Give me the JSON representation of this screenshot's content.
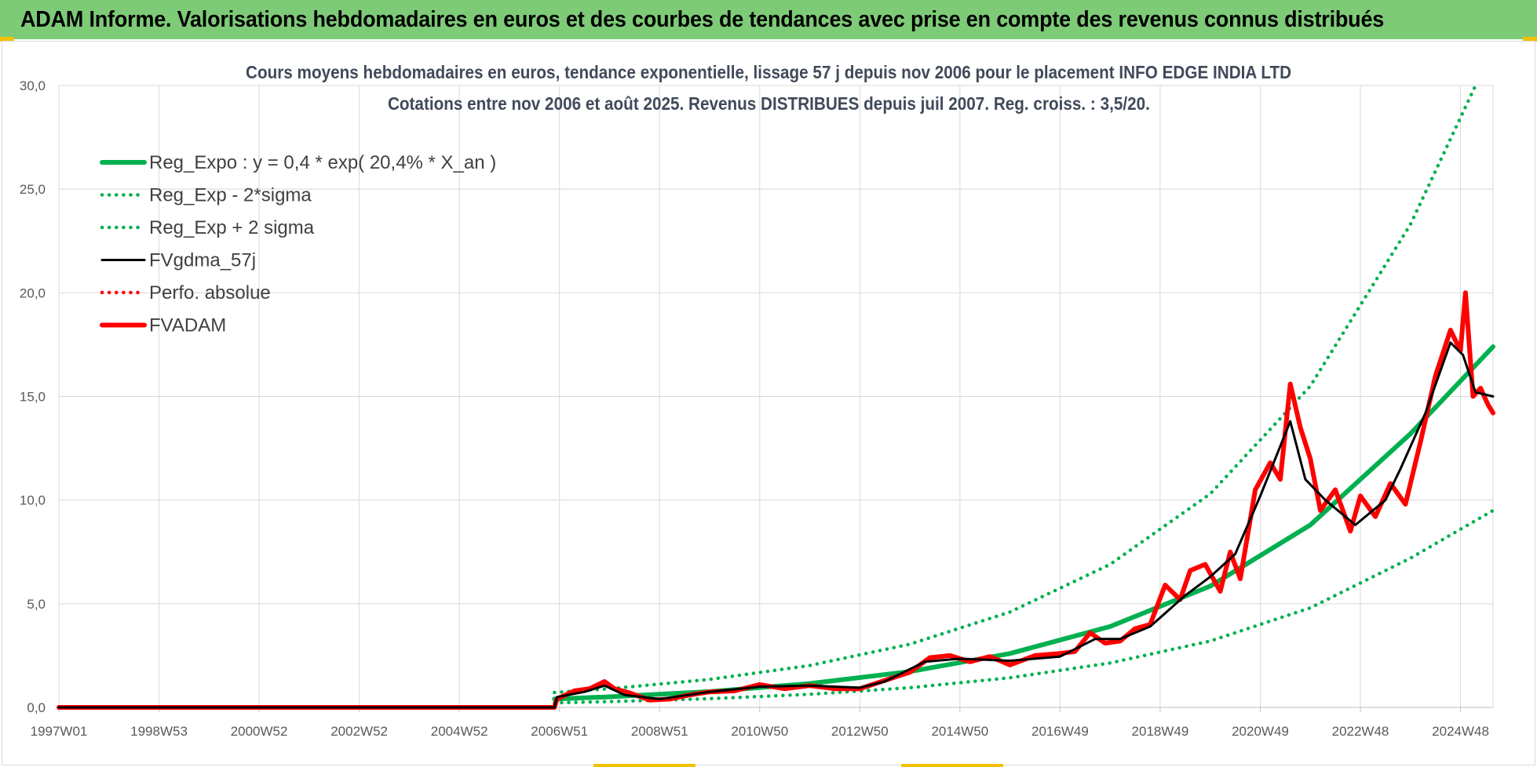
{
  "banner": {
    "title": "ADAM Informe. Valorisations hebdomadaires en euros et des courbes de tendances avec prise en compte des revenus connus distribués"
  },
  "colors": {
    "banner_bg": "#7dcb77",
    "accent": "#f2c200",
    "reg_green": "#00b050",
    "fvgdma": "#000000",
    "fvadam": "#ff0000"
  },
  "chart_data": {
    "type": "line",
    "title_line1": "Cours moyens hebdomadaires en euros, tendance exponentielle, lissage 57 j depuis nov 2006 pour le placement INFO EDGE INDIA LTD",
    "title_line2": "Cotations entre nov 2006 et août 2025. Revenus DISTRIBUES depuis juil 2007. Reg. croiss. : 3,5/20.",
    "ylim": [
      0,
      30
    ],
    "grid": true,
    "legend_position": "top-left",
    "y_ticks": [
      "0,0",
      "5,0",
      "10,0",
      "15,0",
      "20,0",
      "25,0",
      "30,0"
    ],
    "x_ticks": [
      {
        "label": "1997W01",
        "x": 1997.0
      },
      {
        "label": "1998W53",
        "x": 1999.0
      },
      {
        "label": "2000W52",
        "x": 2001.0
      },
      {
        "label": "2002W52",
        "x": 2003.0
      },
      {
        "label": "2004W52",
        "x": 2005.0
      },
      {
        "label": "2006W51",
        "x": 2007.0
      },
      {
        "label": "2008W51",
        "x": 2009.0
      },
      {
        "label": "2010W50",
        "x": 2011.0
      },
      {
        "label": "2012W50",
        "x": 2013.0
      },
      {
        "label": "2014W50",
        "x": 2015.0
      },
      {
        "label": "2016W49",
        "x": 2017.0
      },
      {
        "label": "2018W49",
        "x": 2019.0
      },
      {
        "label": "2020W49",
        "x": 2021.0
      },
      {
        "label": "2022W48",
        "x": 2023.0
      },
      {
        "label": "2024W48",
        "x": 2025.0
      }
    ],
    "x_range": [
      1997.0,
      2025.65
    ],
    "series": [
      {
        "name": "Reg_Expo : y = 0,4 * exp( 20,4% *  X_an )",
        "style": "solid-thick",
        "color": "#00b050",
        "x": [
          2006.9,
          2008,
          2010,
          2012,
          2014,
          2016,
          2018,
          2020,
          2022,
          2024,
          2025.65
        ],
        "y": [
          0.4,
          0.51,
          0.76,
          1.15,
          1.73,
          2.6,
          3.9,
          5.85,
          8.8,
          13.2,
          17.4
        ]
      },
      {
        "name": "Reg_Exp - 2*sigma",
        "style": "dotted",
        "color": "#00b050",
        "x": [
          2006.9,
          2008,
          2010,
          2012,
          2014,
          2016,
          2018,
          2020,
          2022,
          2024,
          2025.65
        ],
        "y": [
          0.22,
          0.28,
          0.42,
          0.63,
          0.95,
          1.43,
          2.14,
          3.2,
          4.8,
          7.2,
          9.5
        ]
      },
      {
        "name": "Reg_Exp + 2 sigma",
        "style": "dotted",
        "color": "#00b050",
        "x": [
          2006.9,
          2008,
          2010,
          2012,
          2014,
          2016,
          2018,
          2020,
          2022,
          2024,
          2025.3
        ],
        "y": [
          0.72,
          0.9,
          1.35,
          2.02,
          3.05,
          4.6,
          6.9,
          10.3,
          15.5,
          23.3,
          30.0
        ]
      },
      {
        "name": "FVgdma_57j",
        "style": "solid",
        "color": "#000000",
        "x": [
          1997.0,
          2006.9,
          2006.95,
          2007.5,
          2007.9,
          2008.3,
          2009.0,
          2010.0,
          2011.0,
          2012.0,
          2013.0,
          2013.5,
          2014.3,
          2015.0,
          2016.0,
          2017.0,
          2017.7,
          2018.2,
          2018.8,
          2019.5,
          2020.0,
          2020.5,
          2021.0,
          2021.6,
          2021.9,
          2022.3,
          2022.9,
          2023.5,
          2023.8,
          2024.3,
          2024.8,
          2025.05,
          2025.3,
          2025.65
        ],
        "y": [
          0.0,
          0.0,
          0.5,
          0.75,
          1.05,
          0.6,
          0.4,
          0.75,
          1.0,
          1.05,
          0.95,
          1.25,
          2.2,
          2.35,
          2.25,
          2.45,
          3.3,
          3.3,
          3.9,
          5.4,
          6.3,
          7.4,
          10.2,
          13.8,
          11.0,
          10.0,
          8.8,
          10.0,
          11.5,
          14.2,
          17.6,
          17.0,
          15.2,
          15.0
        ]
      },
      {
        "name": "Perfo. absolue",
        "style": "dotted",
        "color": "#ff0000",
        "x": [],
        "y": []
      },
      {
        "name": "FVADAM",
        "style": "solid-thick",
        "color": "#ff0000",
        "x": [
          1997.0,
          2006.9,
          2006.95,
          2007.3,
          2007.6,
          2007.9,
          2008.1,
          2008.4,
          2008.8,
          2009.2,
          2009.6,
          2010.0,
          2010.5,
          2011.0,
          2011.5,
          2012.0,
          2012.5,
          2013.0,
          2013.5,
          2014.0,
          2014.4,
          2014.8,
          2015.2,
          2015.6,
          2016.0,
          2016.5,
          2017.0,
          2017.3,
          2017.6,
          2017.9,
          2018.2,
          2018.5,
          2018.8,
          2019.1,
          2019.4,
          2019.6,
          2019.9,
          2020.2,
          2020.4,
          2020.6,
          2020.9,
          2021.2,
          2021.4,
          2021.6,
          2021.8,
          2022.0,
          2022.2,
          2022.5,
          2022.8,
          2023.0,
          2023.3,
          2023.6,
          2023.9,
          2024.2,
          2024.5,
          2024.8,
          2025.0,
          2025.1,
          2025.25,
          2025.4,
          2025.55,
          2025.65
        ],
        "y": [
          0.0,
          0.0,
          0.4,
          0.8,
          0.9,
          1.25,
          0.9,
          0.7,
          0.35,
          0.4,
          0.6,
          0.75,
          0.8,
          1.1,
          0.9,
          1.05,
          0.9,
          0.9,
          1.3,
          1.7,
          2.4,
          2.5,
          2.2,
          2.45,
          2.05,
          2.5,
          2.6,
          2.7,
          3.6,
          3.1,
          3.2,
          3.8,
          4.0,
          5.9,
          5.2,
          6.6,
          6.9,
          5.6,
          7.5,
          6.2,
          10.5,
          11.8,
          11.0,
          15.6,
          13.5,
          12.0,
          9.5,
          10.5,
          8.5,
          10.2,
          9.2,
          10.8,
          9.8,
          12.8,
          16.0,
          18.2,
          17.2,
          20.0,
          15.0,
          15.4,
          14.6,
          14.2
        ]
      }
    ]
  }
}
